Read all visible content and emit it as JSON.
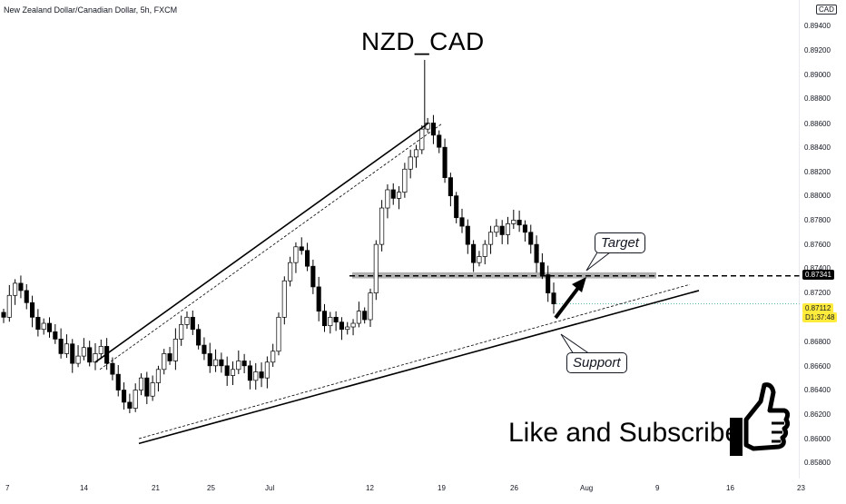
{
  "header": {
    "symbol_line": "New Zealand Dollar/Canadian Dollar, 5h, FXCM",
    "currency": "CAD"
  },
  "title": "NZD_CAD",
  "cta": "Like and Subscribe",
  "annotations": {
    "target": "Target",
    "support": "Support"
  },
  "price_axis": {
    "labels": [
      "0.89400",
      "0.89200",
      "0.89000",
      "0.88800",
      "0.88600",
      "0.88400",
      "0.88200",
      "0.88000",
      "0.87800",
      "0.87600",
      "0.87400",
      "0.87200",
      "0.86800",
      "0.86600",
      "0.86400",
      "0.86200",
      "0.86000",
      "0.85800"
    ],
    "current_price": "0.87112",
    "countdown": "D1:37:48",
    "target_price": "0.87341"
  },
  "time_axis": {
    "labels": [
      "7",
      "14",
      "21",
      "25",
      "Jul",
      "12",
      "19",
      "26",
      "Aug",
      "9",
      "16",
      "23"
    ]
  },
  "colors": {
    "up": "#26a69a",
    "down": "#ef5350",
    "bull_candle": "#ffffff",
    "bear_candle": "#000000",
    "target_zone": "#9e9e9e",
    "current_tag": "#ffeb3b",
    "accent": "#000000"
  },
  "chart_data": {
    "type": "candlestick",
    "title": "NZD_CAD",
    "subtitle": "New Zealand Dollar/Canadian Dollar, 5h, FXCM",
    "xlabel": "",
    "ylabel": "",
    "x_tick_labels": [
      "7",
      "14",
      "21",
      "25",
      "Jul",
      "12",
      "19",
      "26",
      "Aug",
      "9",
      "16",
      "23"
    ],
    "ylim": [
      0.8575,
      0.895
    ],
    "close_series": [
      0.87,
      0.8718,
      0.8728,
      0.8722,
      0.8712,
      0.87,
      0.869,
      0.8695,
      0.8688,
      0.8682,
      0.867,
      0.8678,
      0.8662,
      0.8668,
      0.8675,
      0.8663,
      0.867,
      0.8676,
      0.8662,
      0.8653,
      0.864,
      0.863,
      0.8625,
      0.864,
      0.865,
      0.8635,
      0.8646,
      0.8657,
      0.867,
      0.8664,
      0.8682,
      0.8694,
      0.87,
      0.869,
      0.8677,
      0.867,
      0.866,
      0.8665,
      0.866,
      0.8652,
      0.8657,
      0.8664,
      0.866,
      0.8648,
      0.8655,
      0.865,
      0.8663,
      0.8672,
      0.87,
      0.873,
      0.8745,
      0.8758,
      0.8755,
      0.8742,
      0.8725,
      0.8705,
      0.8693,
      0.87,
      0.8696,
      0.869,
      0.8692,
      0.8695,
      0.8705,
      0.8698,
      0.872,
      0.876,
      0.879,
      0.8805,
      0.8798,
      0.8803,
      0.8822,
      0.8832,
      0.8838,
      0.8855,
      0.886,
      0.885,
      0.884,
      0.8815,
      0.88,
      0.8782,
      0.8775,
      0.876,
      0.8745,
      0.875,
      0.876,
      0.877,
      0.8775,
      0.8768,
      0.8777,
      0.878,
      0.8776,
      0.877,
      0.876,
      0.8745,
      0.8735,
      0.872,
      0.8711
    ],
    "close_series_note": "",
    "current_price": 0.87112,
    "target_level": 0.87341,
    "target_zone": [
      0.8732,
      0.8737
    ],
    "trendlines": [
      {
        "name": "resistance",
        "from": [
          0,
          0.8663
        ],
        "to": [
          0.62,
          0.8859
        ]
      },
      {
        "name": "support",
        "from": [
          0.14,
          0.8595
        ],
        "to": [
          1.0,
          0.8728
        ]
      }
    ],
    "annotations": [
      "Target",
      "Support"
    ],
    "grid": false
  }
}
